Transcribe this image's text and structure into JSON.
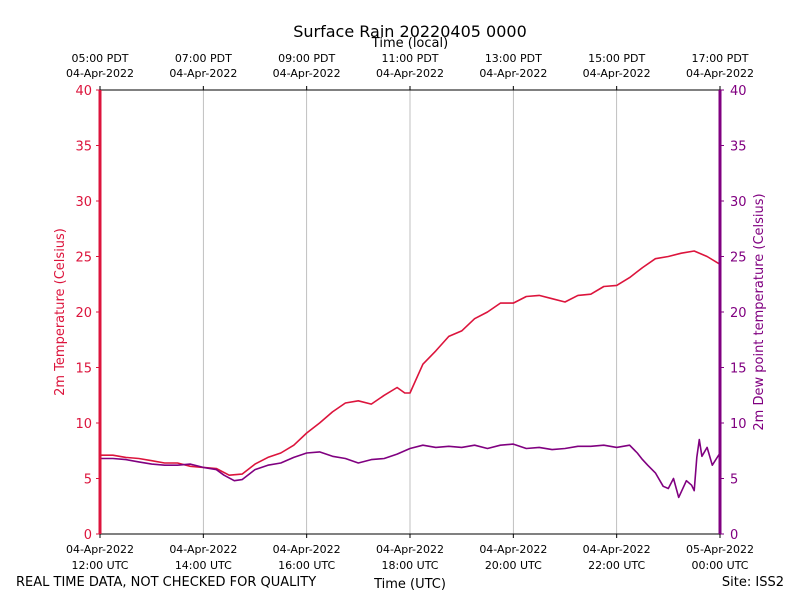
{
  "chart_data": {
    "type": "line",
    "title": "Surface Rain 20220405 0000",
    "top_xlabel": "Time (local)",
    "xlabel": "Time (UTC)",
    "ylabel_left": "2m Temperature (Celsius)",
    "ylabel_right": "2m Dew point temperature (Celsius)",
    "ylim": [
      0,
      40
    ],
    "yticks": [
      0,
      5,
      10,
      15,
      20,
      25,
      30,
      35,
      40
    ],
    "xlim_hours": [
      0,
      12
    ],
    "grid_x": true,
    "bottom_ticks": [
      {
        "hour": 0,
        "date": "04-Apr-2022",
        "time": "12:00 UTC"
      },
      {
        "hour": 2,
        "date": "04-Apr-2022",
        "time": "14:00 UTC"
      },
      {
        "hour": 4,
        "date": "04-Apr-2022",
        "time": "16:00 UTC"
      },
      {
        "hour": 6,
        "date": "04-Apr-2022",
        "time": "18:00 UTC"
      },
      {
        "hour": 8,
        "date": "04-Apr-2022",
        "time": "20:00 UTC"
      },
      {
        "hour": 10,
        "date": "04-Apr-2022",
        "time": "22:00 UTC"
      },
      {
        "hour": 12,
        "date": "05-Apr-2022",
        "time": "00:00 UTC"
      }
    ],
    "top_ticks": [
      {
        "hour": 0,
        "time": "05:00 PDT",
        "date": "04-Apr-2022"
      },
      {
        "hour": 2,
        "time": "07:00 PDT",
        "date": "04-Apr-2022"
      },
      {
        "hour": 4,
        "time": "09:00 PDT",
        "date": "04-Apr-2022"
      },
      {
        "hour": 6,
        "time": "11:00 PDT",
        "date": "04-Apr-2022"
      },
      {
        "hour": 8,
        "time": "13:00 PDT",
        "date": "04-Apr-2022"
      },
      {
        "hour": 10,
        "time": "15:00 PDT",
        "date": "04-Apr-2022"
      },
      {
        "hour": 12,
        "time": "17:00 PDT",
        "date": "04-Apr-2022"
      }
    ],
    "series": [
      {
        "name": "2m Temperature (Celsius)",
        "color": "#dc143c",
        "axis": "left",
        "x": [
          0,
          0.25,
          0.5,
          0.75,
          1.0,
          1.25,
          1.5,
          1.75,
          2.0,
          2.25,
          2.5,
          2.75,
          3.0,
          3.25,
          3.5,
          3.75,
          4.0,
          4.25,
          4.5,
          4.75,
          5.0,
          5.25,
          5.5,
          5.75,
          5.9,
          6.0,
          6.25,
          6.5,
          6.75,
          7.0,
          7.25,
          7.5,
          7.75,
          8.0,
          8.25,
          8.5,
          8.75,
          9.0,
          9.25,
          9.5,
          9.75,
          10.0,
          10.25,
          10.5,
          10.75,
          11.0,
          11.25,
          11.5,
          11.75,
          12.0
        ],
        "y": [
          7.1,
          7.1,
          6.9,
          6.8,
          6.6,
          6.4,
          6.4,
          6.1,
          6.0,
          5.9,
          5.3,
          5.4,
          6.3,
          6.9,
          7.3,
          8.0,
          9.1,
          10.0,
          11.0,
          11.8,
          12.0,
          11.7,
          12.5,
          13.2,
          12.7,
          12.7,
          15.3,
          16.5,
          17.8,
          18.3,
          19.4,
          20.0,
          20.8,
          20.8,
          21.4,
          21.5,
          21.2,
          20.9,
          21.5,
          21.6,
          22.3,
          22.4,
          23.1,
          24.0,
          24.8,
          25.0,
          25.3,
          25.5,
          25.0,
          24.3
        ]
      },
      {
        "name": "2m Dew point temperature (Celsius)",
        "color": "#800080",
        "axis": "right",
        "x": [
          0,
          0.25,
          0.5,
          0.75,
          1.0,
          1.25,
          1.5,
          1.75,
          2.0,
          2.25,
          2.4,
          2.6,
          2.75,
          3.0,
          3.25,
          3.5,
          3.75,
          4.0,
          4.25,
          4.5,
          4.75,
          5.0,
          5.25,
          5.5,
          5.75,
          6.0,
          6.25,
          6.5,
          6.75,
          7.0,
          7.25,
          7.5,
          7.75,
          8.0,
          8.25,
          8.5,
          8.75,
          9.0,
          9.25,
          9.5,
          9.75,
          10.0,
          10.25,
          10.4,
          10.5,
          10.6,
          10.75,
          10.9,
          11.0,
          11.1,
          11.2,
          11.35,
          11.45,
          11.5,
          11.55,
          11.6,
          11.65,
          11.75,
          11.85,
          12.0
        ],
        "y": [
          6.8,
          6.8,
          6.7,
          6.5,
          6.3,
          6.2,
          6.2,
          6.3,
          6.0,
          5.8,
          5.3,
          4.8,
          4.9,
          5.8,
          6.2,
          6.4,
          6.9,
          7.3,
          7.4,
          7.0,
          6.8,
          6.4,
          6.7,
          6.8,
          7.2,
          7.7,
          8.0,
          7.8,
          7.9,
          7.8,
          8.0,
          7.7,
          8.0,
          8.1,
          7.7,
          7.8,
          7.6,
          7.7,
          7.9,
          7.9,
          8.0,
          7.8,
          8.0,
          7.3,
          6.7,
          6.2,
          5.5,
          4.3,
          4.1,
          5.0,
          3.3,
          4.8,
          4.4,
          3.9,
          6.9,
          8.5,
          7.0,
          7.8,
          6.2,
          7.3
        ]
      }
    ]
  },
  "footer": {
    "left": "REAL TIME DATA, NOT CHECKED FOR QUALITY",
    "right": "Site: ISS2"
  }
}
